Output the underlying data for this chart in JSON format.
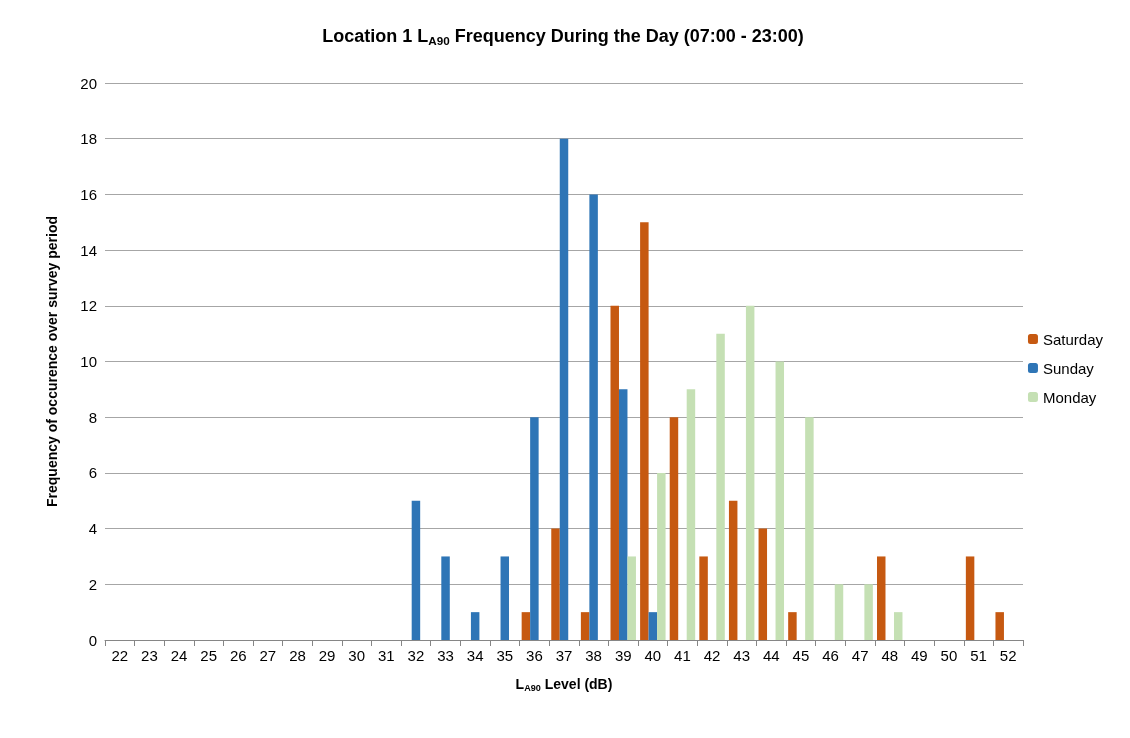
{
  "chart_data": {
    "type": "bar",
    "title": "Location 1 L$_{A90}$ Frequency During the Day (07:00 - 23:00)",
    "xlabel": "L$_{A90}$ Level (dB)",
    "ylabel": "Frequency of occurence over survey period",
    "categories": [
      "22",
      "23",
      "24",
      "25",
      "26",
      "27",
      "28",
      "29",
      "30",
      "31",
      "32",
      "33",
      "34",
      "35",
      "36",
      "37",
      "38",
      "39",
      "40",
      "41",
      "42",
      "43",
      "44",
      "45",
      "46",
      "47",
      "48",
      "49",
      "50",
      "51",
      "52"
    ],
    "series": [
      {
        "name": "Saturday",
        "color": "#c65911",
        "values": [
          0,
          0,
          0,
          0,
          0,
          0,
          0,
          0,
          0,
          0,
          0,
          0,
          0,
          0,
          1,
          4,
          1,
          12,
          15,
          8,
          3,
          5,
          4,
          1,
          0,
          0,
          3,
          0,
          0,
          3,
          1
        ]
      },
      {
        "name": "Sunday",
        "color": "#2e75b6",
        "values": [
          0,
          0,
          0,
          0,
          0,
          0,
          0,
          0,
          0,
          0,
          5,
          3,
          1,
          3,
          8,
          18,
          16,
          9,
          1,
          0,
          0,
          0,
          0,
          0,
          0,
          0,
          0,
          0,
          0,
          0,
          0
        ]
      },
      {
        "name": "Monday",
        "color": "#c5e0b4",
        "values": [
          0,
          0,
          0,
          0,
          0,
          0,
          0,
          0,
          0,
          0,
          0,
          0,
          0,
          0,
          0,
          0,
          0,
          3,
          6,
          9,
          11,
          12,
          10,
          8,
          2,
          2,
          1,
          0,
          0,
          0,
          0
        ]
      }
    ],
    "ylim": [
      0,
      20
    ],
    "yticks": [
      0,
      2,
      4,
      6,
      8,
      10,
      12,
      14,
      16,
      18,
      20
    ],
    "grid": "y",
    "legend": "right"
  }
}
